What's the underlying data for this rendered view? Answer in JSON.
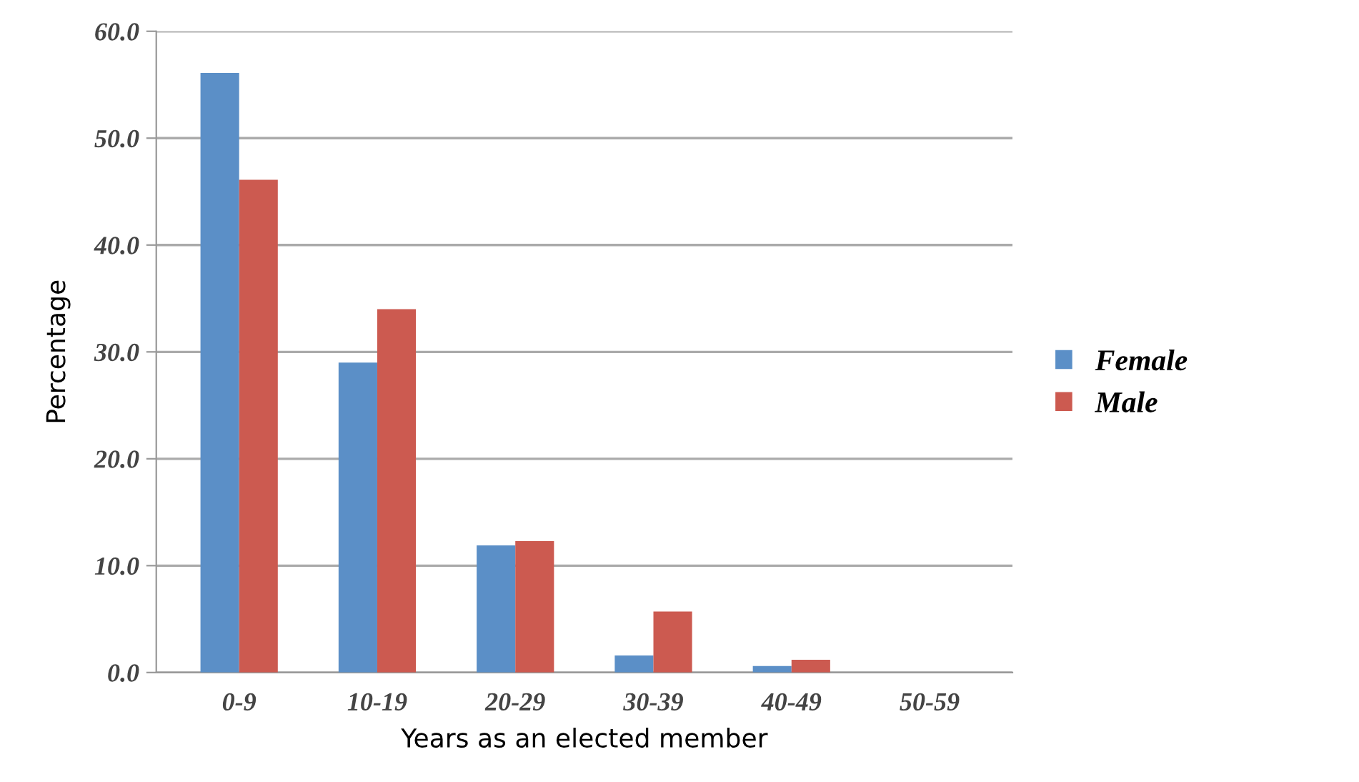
{
  "chart_data": {
    "type": "bar",
    "xlabel": "Years as an elected member",
    "ylabel": "Percentage",
    "categories": [
      "0-9",
      "10-19",
      "20-29",
      "30-39",
      "40-49",
      "50-59"
    ],
    "series": [
      {
        "name": "Female",
        "color": "#5b8fc7",
        "values": [
          56.1,
          29.0,
          11.9,
          1.6,
          0.6,
          0
        ]
      },
      {
        "name": "Male",
        "color": "#cc5a50",
        "values": [
          46.1,
          34.0,
          12.3,
          5.7,
          1.2,
          0
        ]
      }
    ],
    "ylim": [
      0,
      60
    ],
    "yticks": [
      {
        "value": 0,
        "label": "0.0"
      },
      {
        "value": 10,
        "label": "10.0"
      },
      {
        "value": 20,
        "label": "20.0"
      },
      {
        "value": 30,
        "label": "30.0"
      },
      {
        "value": 40,
        "label": "40.0"
      },
      {
        "value": 50,
        "label": "50.0"
      },
      {
        "value": 60,
        "label": "60.0"
      }
    ],
    "grid": "y",
    "legend": "right"
  }
}
